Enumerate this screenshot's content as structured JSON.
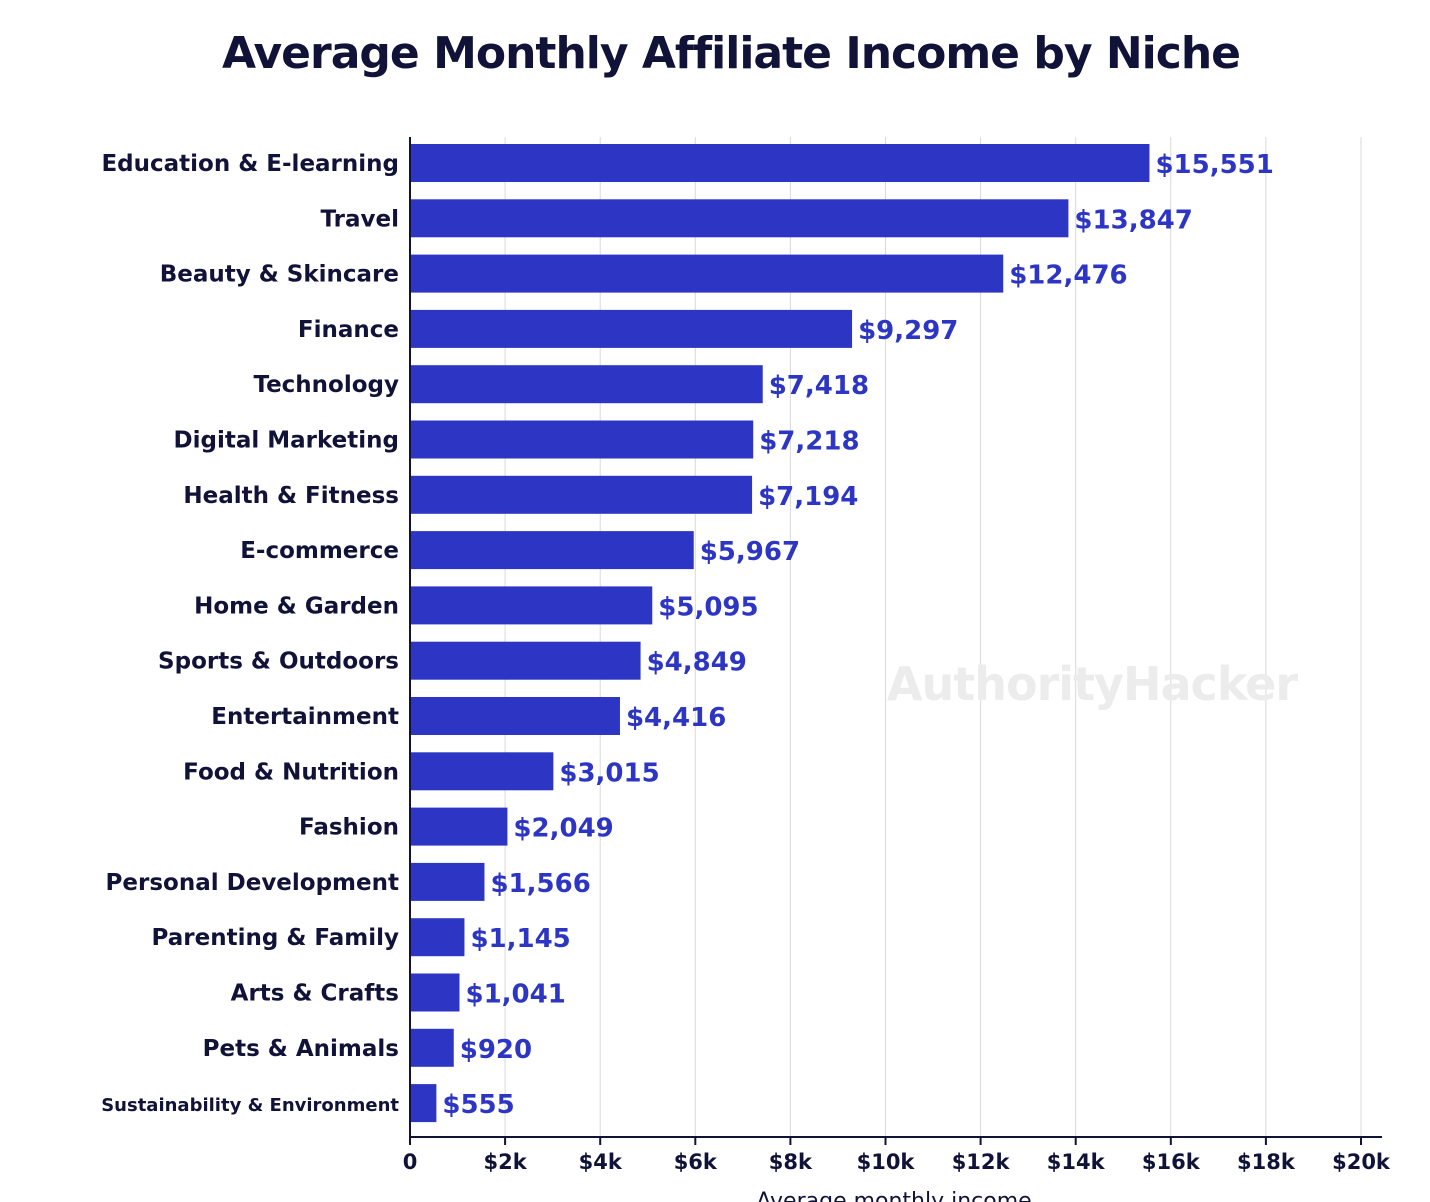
{
  "chart_data": {
    "type": "bar",
    "orientation": "horizontal",
    "title": "Average Monthly Affiliate Income by Niche",
    "xlabel": "Average monthly income",
    "ylabel": "",
    "xlim": [
      0,
      20000
    ],
    "x_ticks": [
      0,
      2000,
      4000,
      6000,
      8000,
      10000,
      12000,
      14000,
      16000,
      18000,
      20000
    ],
    "x_tick_labels": [
      "0",
      "$2k",
      "$4k",
      "$6k",
      "$8k",
      "$10k",
      "$12k",
      "$14k",
      "$16k",
      "$18k",
      "$20k"
    ],
    "grid": "vertical",
    "legend": "none",
    "watermark": "AuthorityHacker",
    "categories": [
      "Education & E-learning",
      "Travel",
      "Beauty & Skincare",
      "Finance",
      "Technology",
      "Digital Marketing",
      "Health & Fitness",
      "E-commerce",
      "Home & Garden",
      "Sports & Outdoors",
      "Entertainment",
      "Food & Nutrition",
      "Fashion",
      "Personal Development",
      "Parenting & Family",
      "Arts & Crafts",
      "Pets & Animals",
      "Sustainability & Environment"
    ],
    "values": [
      15551,
      13847,
      12476,
      9297,
      7418,
      7218,
      7194,
      5967,
      5095,
      4849,
      4416,
      3015,
      2049,
      1566,
      1145,
      1041,
      920,
      555
    ],
    "value_labels": [
      "$15,551",
      "$13,847",
      "$12,476",
      "$9,297",
      "$7,418",
      "$7,218",
      "$7,194",
      "$5,967",
      "$5,095",
      "$4,849",
      "$4,416",
      "$3,015",
      "$2,049",
      "$1,566",
      "$1,145",
      "$1,041",
      "$920",
      "$555"
    ],
    "colors": {
      "bar": "#2d36c4",
      "value_label": "#2d36c4",
      "category_label": "#101238",
      "title": "#101238",
      "axis": "#101238",
      "grid": "#d9d9d9",
      "watermark": "#ececec"
    }
  }
}
